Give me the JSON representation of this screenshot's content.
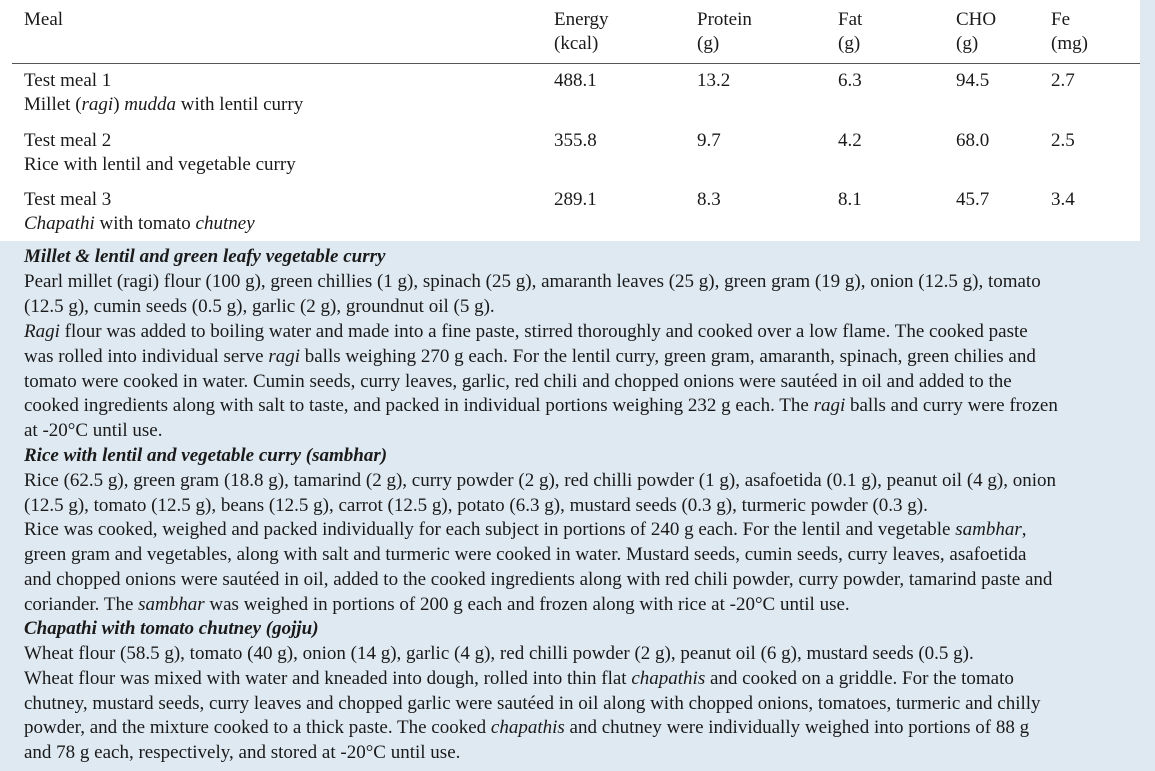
{
  "table": {
    "headers": {
      "meal": "Meal",
      "energy": [
        "Energy",
        "(kcal)"
      ],
      "protein": [
        "Protein",
        "(g)"
      ],
      "fat": [
        "Fat",
        "(g)"
      ],
      "cho": [
        "CHO",
        "(g)"
      ],
      "fe": [
        "Fe",
        "(mg)"
      ]
    },
    "rows": [
      {
        "meal": "Test meal 1",
        "desc": {
          "pre": "Millet (",
          "it1": "ragi",
          "mid": ") ",
          "it2": "mudda",
          "post": " with lentil curry"
        },
        "energy": "488.1",
        "protein": "13.2",
        "fat": "6.3",
        "cho": "94.5",
        "fe": "2.7"
      },
      {
        "meal": "Test meal 2",
        "desc": {
          "pre": "Rice with lentil and vegetable curry",
          "it1": "",
          "mid": "",
          "it2": "",
          "post": ""
        },
        "energy": "355.8",
        "protein": "9.7",
        "fat": "4.2",
        "cho": "68.0",
        "fe": "2.5"
      },
      {
        "meal": "Test meal 3",
        "desc": {
          "pre": "",
          "it1": "Chapathi",
          "mid": " with tomato ",
          "it2": "chutney",
          "post": ""
        },
        "energy": "289.1",
        "protein": "8.3",
        "fat": "8.1",
        "cho": "45.7",
        "fe": "3.4"
      }
    ]
  },
  "sections": {
    "s1": {
      "title": "Millet & lentil and green leafy vegetable curry",
      "l1": "Pearl millet (ragi) flour (100 g), green chillies (1 g), spinach (25 g), amaranth leaves (25 g), green gram (19 g), onion (12.5 g), tomato",
      "l2": "(12.5 g), cumin seeds (0.5 g), garlic (2 g), groundnut oil (5 g).",
      "p_a_it": "Ragi",
      "p_a": " flour was added to boiling water and made into a fine paste, stirred thoroughly and cooked over a low flame. The cooked paste",
      "p_b": "was rolled into individual serve ",
      "p_b_it": "ragi",
      "p_b2": " balls weighing 270 g each. For the lentil curry, green gram, amaranth, spinach, green chilies and",
      "p_c": "tomato were cooked in water. Cumin seeds, curry leaves, garlic, red chili and chopped onions were sautéed in oil and added to the",
      "p_d": "cooked ingredients along with salt to taste, and packed in individual portions weighing 232 g each. The ",
      "p_d_it": "ragi",
      "p_d2": " balls and curry were frozen",
      "p_e": "at -20°C until use."
    },
    "s2": {
      "title": "Rice with lentil and vegetable curry (sambhar)",
      "l1": "Rice (62.5 g), green gram (18.8 g), tamarind (2 g), curry powder (2 g), red chilli powder (1 g), asafoetida (0.1 g), peanut oil (4 g), onion",
      "l2": "(12.5 g), tomato (12.5 g), beans (12.5 g), carrot (12.5 g), potato (6.3 g), mustard seeds (0.3 g), turmeric powder (0.3 g).",
      "p_a": "Rice was cooked, weighed and packed individually for each subject in portions of 240 g each. For the lentil and vegetable ",
      "p_a_it": "sambhar",
      "p_a2": ",",
      "p_b": "green gram and vegetables, along with salt and turmeric were cooked in water. Mustard seeds, cumin seeds, curry leaves, asafoetida",
      "p_c": "and chopped onions were sautéed in oil, added to the cooked ingredients along with red chili powder, curry powder, tamarind paste and",
      "p_d": "coriander. The ",
      "p_d_it": "sambhar",
      "p_d2": " was weighed in portions of 200 g each and frozen along with rice at -20°C until use."
    },
    "s3": {
      "title": "Chapathi with tomato chutney (gojju)",
      "l1": "Wheat flour (58.5 g), tomato (40 g), onion (14 g), garlic (4 g), red chilli powder (2 g), peanut oil (6 g), mustard seeds (0.5 g).",
      "p_a": "Wheat flour was mixed with water and kneaded into dough, rolled into thin flat ",
      "p_a_it": "chapathis",
      "p_a2": " and cooked on a griddle. For the tomato",
      "p_b": "chutney, mustard seeds, curry leaves and chopped garlic were sautéed in oil along with chopped onions, tomatoes, turmeric and chilly",
      "p_c": "powder, and the mixture cooked to a thick paste. The cooked ",
      "p_c_it": "chapathis",
      "p_c2": " and chutney were individually weighed into portions of 88 g",
      "p_d": "and 78 g each, respectively, and stored at -20°C until use."
    }
  }
}
